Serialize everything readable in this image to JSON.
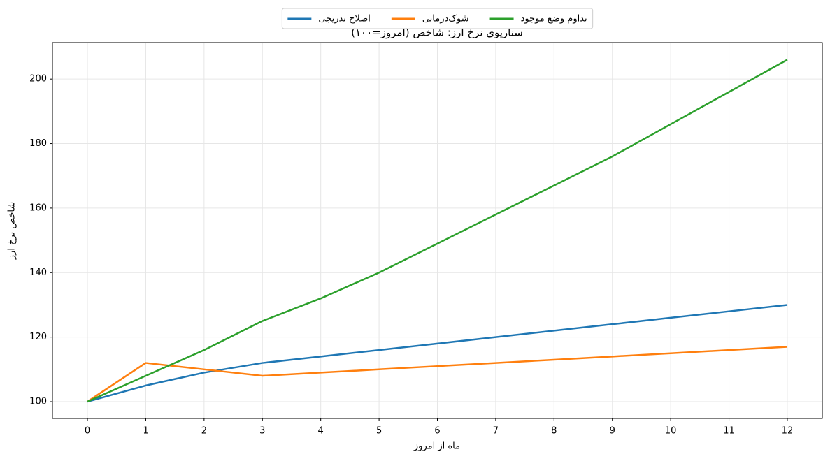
{
  "chart_data": {
    "type": "line",
    "title": "سناریوی نرخ ارز: شاخص (امروز=۱۰۰)",
    "x_label": "ماه از امروز",
    "y_label": "شاخص نرخ ارز",
    "x": [
      0,
      1,
      2,
      3,
      4,
      5,
      6,
      7,
      8,
      9,
      10,
      11,
      12
    ],
    "series": [
      {
        "name": "اصلاح تدریجی",
        "color": "#1f77b4",
        "values": [
          100,
          105,
          109,
          112,
          114,
          116,
          118,
          120,
          122,
          124,
          126,
          128,
          130
        ]
      },
      {
        "name": "شوک‌درمانی",
        "color": "#ff7f0e",
        "values": [
          100,
          112,
          110,
          108,
          109,
          110,
          111,
          112,
          113,
          114,
          115,
          116,
          117
        ]
      },
      {
        "name": "تداوم وضع موجود",
        "color": "#2ca02c",
        "values": [
          100,
          108,
          116,
          125,
          132,
          140,
          149,
          158,
          167,
          176,
          186,
          196,
          206
        ]
      }
    ],
    "xlim": [
      -0.6,
      12.6
    ],
    "ylim": [
      94.8,
      211.3
    ],
    "xticks": [
      0,
      1,
      2,
      3,
      4,
      5,
      6,
      7,
      8,
      9,
      10,
      11,
      12
    ],
    "yticks": [
      100,
      120,
      140,
      160,
      180,
      200
    ],
    "grid": true,
    "legend": "top"
  }
}
